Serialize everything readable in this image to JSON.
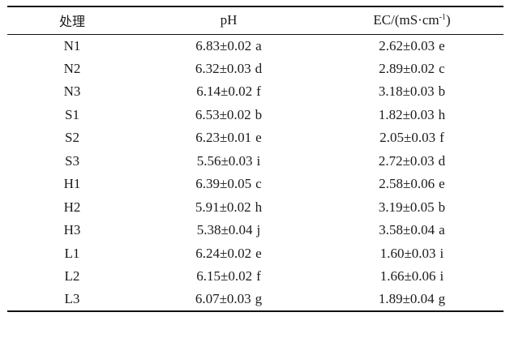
{
  "table": {
    "headers": {
      "treatment": "处理",
      "ph": "pH",
      "ec_main": "EC/(mS·cm",
      "ec_sup": "-1",
      "ec_close": ")"
    },
    "rows": [
      {
        "treatment": "N1",
        "ph": "6.83±0.02",
        "ph_sig": "a",
        "ec": "2.62±0.03",
        "ec_sig": "e"
      },
      {
        "treatment": "N2",
        "ph": "6.32±0.03",
        "ph_sig": "d",
        "ec": "2.89±0.02",
        "ec_sig": "c"
      },
      {
        "treatment": "N3",
        "ph": "6.14±0.02",
        "ph_sig": "f",
        "ec": "3.18±0.03",
        "ec_sig": "b"
      },
      {
        "treatment": "S1",
        "ph": "6.53±0.02",
        "ph_sig": "b",
        "ec": "1.82±0.03",
        "ec_sig": "h"
      },
      {
        "treatment": "S2",
        "ph": "6.23±0.01",
        "ph_sig": "e",
        "ec": "2.05±0.03",
        "ec_sig": "f"
      },
      {
        "treatment": "S3",
        "ph": "5.56±0.03",
        "ph_sig": "i",
        "ec": "2.72±0.03",
        "ec_sig": "d"
      },
      {
        "treatment": "H1",
        "ph": "6.39±0.05",
        "ph_sig": "c",
        "ec": "2.58±0.06",
        "ec_sig": "e"
      },
      {
        "treatment": "H2",
        "ph": "5.91±0.02",
        "ph_sig": "h",
        "ec": "3.19±0.05",
        "ec_sig": "b"
      },
      {
        "treatment": "H3",
        "ph": "5.38±0.04",
        "ph_sig": "j",
        "ec": "3.58±0.04",
        "ec_sig": "a"
      },
      {
        "treatment": "L1",
        "ph": "6.24±0.02",
        "ph_sig": "e",
        "ec": "1.60±0.03",
        "ec_sig": "i"
      },
      {
        "treatment": "L2",
        "ph": "6.15±0.02",
        "ph_sig": "f",
        "ec": "1.66±0.06",
        "ec_sig": "i"
      },
      {
        "treatment": "L3",
        "ph": "6.07±0.03",
        "ph_sig": "g",
        "ec": "1.89±0.04",
        "ec_sig": "g"
      }
    ]
  }
}
